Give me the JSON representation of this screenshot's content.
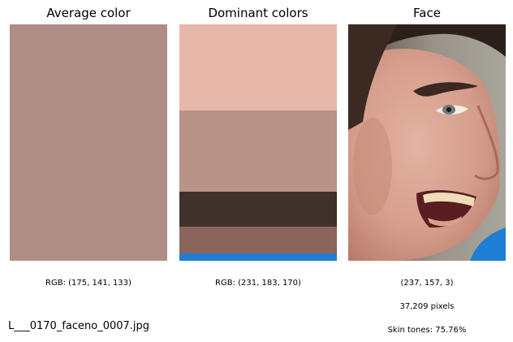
{
  "panels": {
    "average": {
      "title": "Average color",
      "color": "#af8d85",
      "caption": "RGB: (175, 141, 133)"
    },
    "dominant": {
      "title": "Dominant colors",
      "caption": "RGB: (231, 183, 170)",
      "bands": [
        {
          "color": "#e7b7aa",
          "share": 0.365
        },
        {
          "color": "#b79388",
          "share": 0.345
        },
        {
          "color": "#41312b",
          "share": 0.148
        },
        {
          "color": "#8b655c",
          "share": 0.113
        },
        {
          "color": "#1f7fd2",
          "share": 0.029
        }
      ]
    },
    "face": {
      "title": "Face",
      "caption_color": "(237, 157, 3)",
      "caption_pixels": "37,209 pixels",
      "caption_skin": "Skin tones: 75.76%",
      "image": "face-photo"
    }
  },
  "filename": "L___0170_faceno_0007.jpg"
}
